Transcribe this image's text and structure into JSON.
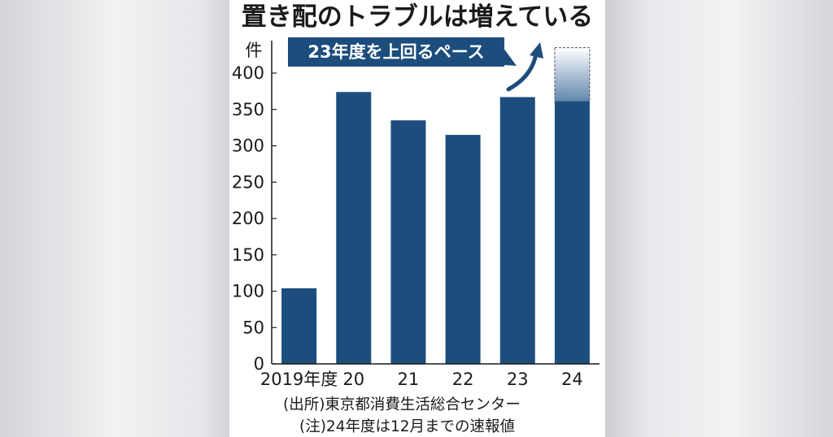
{
  "chart_data": {
    "type": "bar",
    "title": "置き配のトラブルは増えている",
    "ylabel": "件",
    "ylim": [
      0,
      400
    ],
    "yticks": [
      0,
      50,
      100,
      150,
      200,
      250,
      300,
      350,
      400
    ],
    "categories": [
      "2019年度",
      "20",
      "21",
      "22",
      "23",
      "24"
    ],
    "values": [
      104,
      374,
      335,
      315,
      367,
      361
    ],
    "projection": {
      "category": "24",
      "value": 435
    },
    "annotation": "23年度を上回るペース",
    "source": "(出所)東京都消費生活総合センター",
    "note": "(注)24年度は12月までの速報値",
    "colors": {
      "bar": "#1c4d7c",
      "projection": "#5f86ad",
      "axis": "#1a1a1a"
    }
  }
}
